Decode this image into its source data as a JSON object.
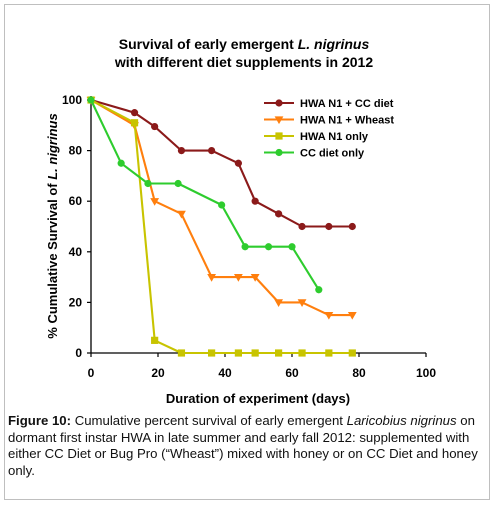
{
  "chart_data": {
    "type": "line",
    "title_line1": "Survival of early emergent ",
    "title_line1_italic": "L. nigrinus",
    "title_line2": "with different diet supplements in 2012",
    "xlabel": "Duration of experiment (days)",
    "ylabel_prefix": "% Cumulative Survival of ",
    "ylabel_italic": "L. nigrinus",
    "xlim": [
      0,
      100
    ],
    "ylim": [
      0,
      100
    ],
    "x_ticks": [
      0,
      20,
      40,
      60,
      80,
      100
    ],
    "y_ticks": [
      0,
      20,
      40,
      60,
      80,
      100
    ],
    "grid": false,
    "legend_position": "top-right",
    "series": [
      {
        "name": "HWA N1 + CC diet",
        "color": "#8B1A1A",
        "marker": "circle",
        "x": [
          0,
          13,
          19,
          27,
          36,
          44,
          49,
          56,
          63,
          71,
          78
        ],
        "y": [
          100,
          95,
          89.5,
          80,
          80,
          75,
          60,
          55,
          50,
          50,
          50
        ]
      },
      {
        "name": "HWA N1 + Wheast",
        "color": "#FF7F0E",
        "marker": "triangle-down",
        "x": [
          0,
          13,
          19,
          27,
          36,
          44,
          49,
          56,
          63,
          71,
          78
        ],
        "y": [
          100,
          90,
          60,
          55,
          30,
          30,
          30,
          20,
          20,
          15,
          15
        ]
      },
      {
        "name": "HWA N1 only",
        "color": "#C8C400",
        "marker": "square",
        "x": [
          0,
          13,
          19,
          27,
          36,
          44,
          49,
          56,
          63,
          71,
          78
        ],
        "y": [
          100,
          91,
          5,
          0,
          0,
          0,
          0,
          0,
          0,
          0,
          0
        ]
      },
      {
        "name": "CC diet only",
        "color": "#2ECC2E",
        "marker": "circle",
        "x": [
          0,
          9,
          17,
          26,
          39,
          46,
          53,
          60,
          68
        ],
        "y": [
          100,
          75,
          67,
          67,
          58.5,
          42,
          42,
          42,
          25
        ]
      }
    ]
  },
  "caption": {
    "label": "Figure 10:",
    "text_1": " Cumulative percent survival of early emergent ",
    "italic": "Laricobius nigrinus",
    "text_2": " on dormant first instar HWA in late summer and early fall 2012: supplemented with either CC Diet or Bug Pro (“Wheast”) mixed with honey or on CC Diet and honey only."
  }
}
